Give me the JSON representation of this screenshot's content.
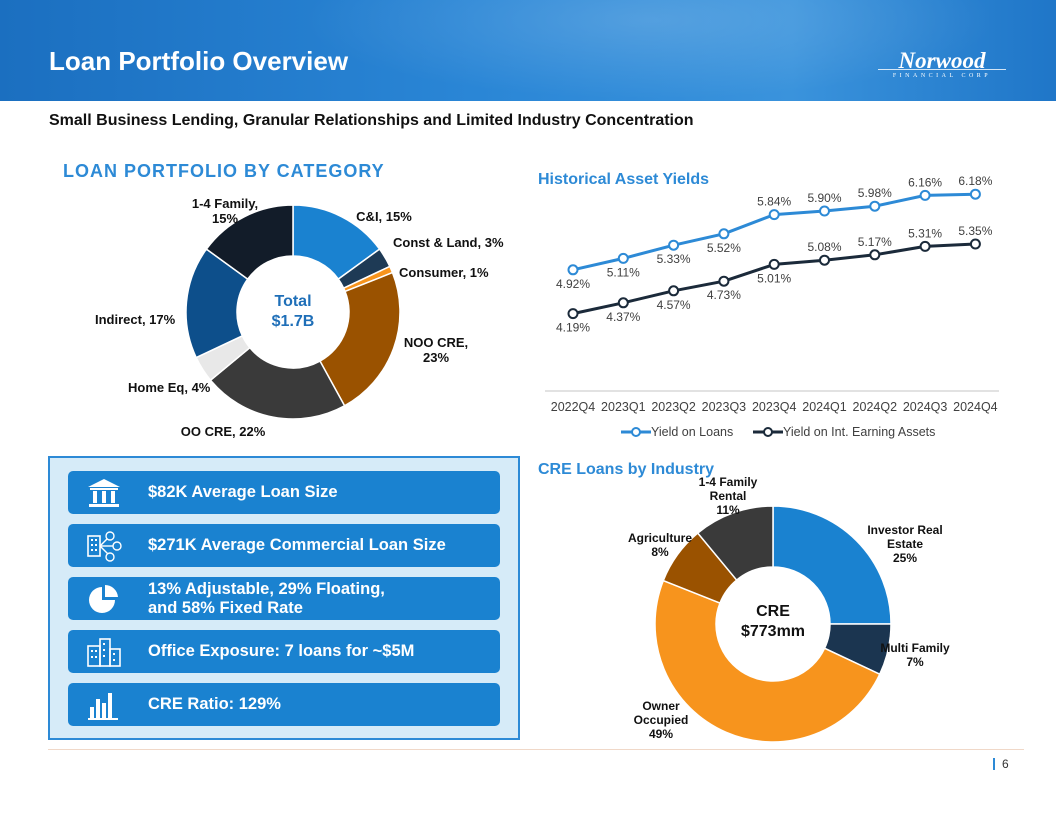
{
  "header": {
    "title": "Loan Portfolio Overview",
    "logo_main": "Norwood",
    "logo_sub": "FINANCIAL CORP"
  },
  "subtitle": "Small Business Lending, Granular Relationships and Limited Industry Concentration",
  "facts": [
    {
      "icon": "bank-icon",
      "lines": [
        "$82K Average Loan Size"
      ]
    },
    {
      "icon": "network-icon",
      "lines": [
        "$271K Average Commercial Loan Size"
      ]
    },
    {
      "icon": "pie-chart-icon",
      "lines": [
        "13% Adjustable, 29% Floating,",
        "and 58% Fixed Rate"
      ]
    },
    {
      "icon": "office-building-icon",
      "lines": [
        "Office Exposure: 7 loans for ~$5M"
      ]
    },
    {
      "icon": "bar-chart-icon",
      "lines": [
        "CRE Ratio: 129%"
      ]
    }
  ],
  "footer": {
    "page_number": "6"
  },
  "colors": {
    "accent": "#2d8ad6",
    "dark_navy": "#1b2a3a",
    "orange": "#f7941d",
    "brown": "#8a4a00"
  },
  "chart_data": [
    {
      "type": "pie",
      "title": "LOAN  PORTFOLIO BY CATEGORY",
      "center_label": [
        "Total",
        "$1.7B"
      ],
      "slices": [
        {
          "label": "C&I, 15%",
          "value": 15,
          "color": "#1a82d0"
        },
        {
          "label": "Const & Land, 3%",
          "value": 3,
          "color": "#1e3a55"
        },
        {
          "label": "Consumer, 1%",
          "value": 1,
          "color": "#f7941d"
        },
        {
          "label": "NOO CRE, 23%",
          "value": 23,
          "color": "#9a5200"
        },
        {
          "label": "OO CRE, 22%",
          "value": 22,
          "color": "#3a3a3a"
        },
        {
          "label": "Home Eq, 4%",
          "value": 4,
          "color": "#e8e8e8"
        },
        {
          "label": "Indirect, 17%",
          "value": 17,
          "color": "#0d4f8b"
        },
        {
          "label": "1-4 Family, 15%",
          "value": 15,
          "color": "#121c29"
        }
      ]
    },
    {
      "type": "line",
      "title": "Historical Asset Yields",
      "categories": [
        "2022Q4",
        "2023Q1",
        "2023Q2",
        "2023Q3",
        "2023Q4",
        "2024Q1",
        "2024Q2",
        "2024Q3",
        "2024Q4"
      ],
      "series": [
        {
          "name": "Yield on Loans",
          "color": "#2d8ad6",
          "values": [
            4.92,
            5.11,
            5.33,
            5.52,
            5.84,
            5.9,
            5.98,
            6.16,
            6.18
          ],
          "labels": [
            "4.92%",
            "5.11%",
            "5.33%",
            "5.52%",
            "5.84%",
            "5.90%",
            "5.98%",
            "6.16%",
            "6.18%"
          ]
        },
        {
          "name": "Yield on Int. Earning Assets",
          "color": "#1b2a3a",
          "values": [
            4.19,
            4.37,
            4.57,
            4.73,
            5.01,
            5.08,
            5.17,
            5.31,
            5.35
          ],
          "labels": [
            "4.19%",
            "4.37%",
            "4.57%",
            "4.73%",
            "5.01%",
            "5.08%",
            "5.17%",
            "5.31%",
            "5.35%"
          ]
        }
      ],
      "legend": "bottom"
    },
    {
      "type": "pie",
      "title": "CRE Loans by Industry",
      "center_label": [
        "CRE",
        "$773mm"
      ],
      "slices": [
        {
          "label": [
            "Investor Real",
            "Estate",
            "25%"
          ],
          "value": 25,
          "color": "#1a82d0"
        },
        {
          "label": [
            "Multi Family",
            "7%"
          ],
          "value": 7,
          "color": "#1b3550"
        },
        {
          "label": [
            "Owner",
            "Occupied",
            "49%"
          ],
          "value": 49,
          "color": "#f7941d"
        },
        {
          "label": [
            "Agriculture",
            "8%"
          ],
          "value": 8,
          "color": "#9a5200"
        },
        {
          "label": [
            "1-4 Family",
            "Rental",
            "11%"
          ],
          "value": 11,
          "color": "#3a3a3a"
        }
      ]
    }
  ]
}
